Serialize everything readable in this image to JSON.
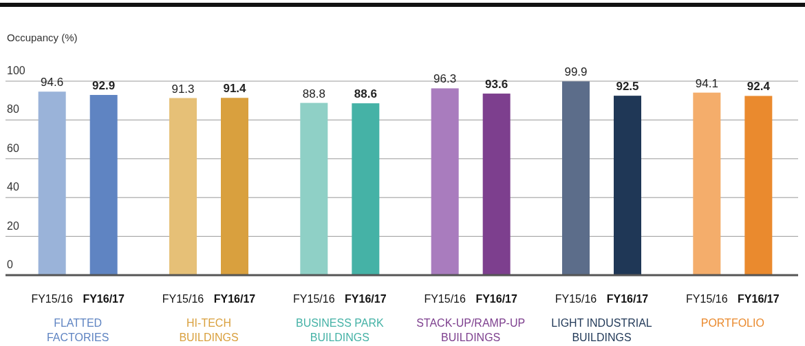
{
  "chart_data": {
    "type": "bar",
    "ylabel": "Occupancy (%)",
    "categories": [
      "FLATTED\nFACTORIES",
      "HI-TECH\nBUILDINGS",
      "BUSINESS PARK\nBUILDINGS",
      "STACK-UP/RAMP-UP\nBUILDINGS",
      "LIGHT INDUSTRIAL\nBUILDINGS",
      "PORTFOLIO"
    ],
    "series": [
      {
        "name": "FY15/16",
        "colors": [
          "#9ab3d9",
          "#e6c077",
          "#8fd0c6",
          "#a97cbe",
          "#5c6d8a",
          "#f4ad6b"
        ],
        "values": [
          94.6,
          91.3,
          88.8,
          96.3,
          99.9,
          94.1
        ]
      },
      {
        "name": "FY16/17",
        "colors": [
          "#5f84c2",
          "#d9a03e",
          "#45b2a6",
          "#7d3f8e",
          "#1f3756",
          "#ea8a2e"
        ],
        "values": [
          92.9,
          91.4,
          88.6,
          93.6,
          92.5,
          92.4
        ]
      }
    ],
    "ylim": [
      0,
      100
    ],
    "yticks": [
      0,
      20,
      40,
      60,
      80,
      100
    ],
    "grid": "y",
    "data_labels": true
  }
}
